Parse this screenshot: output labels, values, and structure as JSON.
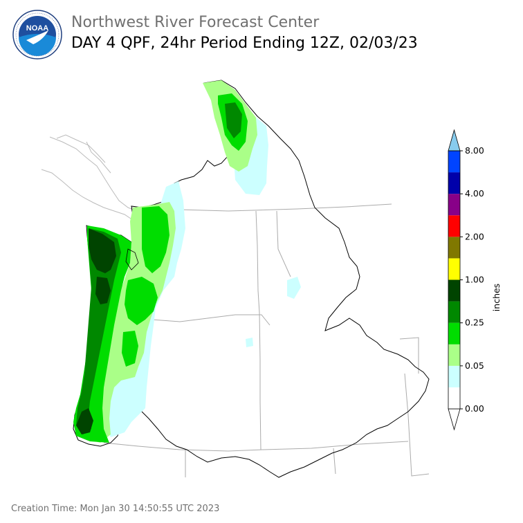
{
  "header": {
    "agency": "Northwest River Forecast Center",
    "product": "DAY 4 QPF, 24hr Period Ending 12Z, 02/03/23",
    "logo_text": "NOAA"
  },
  "legend": {
    "unit_label": "inches",
    "ticks": [
      "0.00",
      "0.05",
      "0.25",
      "1.00",
      "2.00",
      "4.00",
      "8.00"
    ],
    "colors": [
      "#ffffff",
      "#ccffff",
      "#aaff88",
      "#00dd00",
      "#008800",
      "#004400",
      "#ffff00",
      "#807800",
      "#ff0000",
      "#880088",
      "#0000aa",
      "#0044ff",
      "#88ccee"
    ]
  },
  "map": {
    "colors": {
      "very_light": "#ccffff",
      "light_green": "#aaff88",
      "green": "#00dd00",
      "mid_green": "#008800",
      "dark_green": "#004400",
      "state_line": "#aaaaaa",
      "basin_outline": "#000000"
    }
  },
  "footer": {
    "creation_time": "Creation Time: Mon Jan 30 14:50:55 UTC 2023"
  }
}
